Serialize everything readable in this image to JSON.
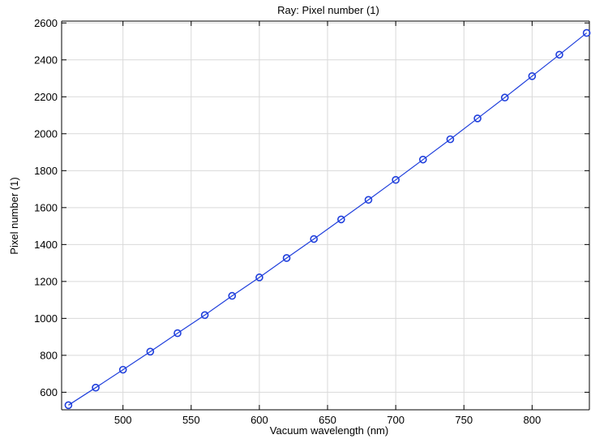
{
  "chart_data": {
    "type": "line",
    "title": "Ray: Pixel number (1)",
    "xlabel": "Vacuum wavelength (nm)",
    "ylabel": "Pixel number (1)",
    "xlim": [
      455,
      842
    ],
    "ylim": [
      505,
      2610
    ],
    "xticks": [
      500,
      550,
      600,
      650,
      700,
      750,
      800
    ],
    "yticks": [
      600,
      800,
      1000,
      1200,
      1400,
      1600,
      1800,
      2000,
      2200,
      2400,
      2600
    ],
    "grid": true,
    "legend": "none",
    "color": "#1f3fdc",
    "series": [
      {
        "x": [
          460,
          480,
          500,
          520,
          540,
          560,
          580,
          600,
          620,
          640,
          660,
          680,
          700,
          720,
          740,
          760,
          780,
          800,
          820,
          840
        ],
        "y": [
          530,
          625,
          722,
          820,
          920,
          1018,
          1122,
          1222,
          1327,
          1430,
          1536,
          1642,
          1750,
          1860,
          1970,
          2083,
          2196,
          2312,
          2428,
          2546
        ]
      }
    ]
  }
}
